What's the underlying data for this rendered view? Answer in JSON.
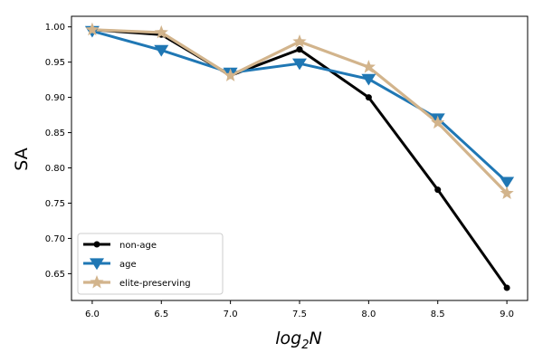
{
  "chart_data": {
    "type": "line",
    "xlabel": "log2N",
    "xlabel_base": "log",
    "xlabel_sub": "2",
    "xlabel_tail": "N",
    "ylabel": "SA",
    "x": [
      6.0,
      6.5,
      7.0,
      7.5,
      8.0,
      8.5,
      9.0
    ],
    "xlim": [
      5.85,
      9.15
    ],
    "ylim": [
      0.612,
      1.015
    ],
    "xticks": [
      6.0,
      6.5,
      7.0,
      7.5,
      8.0,
      8.5,
      9.0
    ],
    "xtick_labels": [
      "6.0",
      "6.5",
      "7.0",
      "7.5",
      "8.0",
      "8.5",
      "9.0"
    ],
    "yticks": [
      0.65,
      0.7,
      0.75,
      0.8,
      0.85,
      0.9,
      0.95,
      1.0
    ],
    "ytick_labels": [
      "0.65",
      "0.70",
      "0.75",
      "0.80",
      "0.85",
      "0.90",
      "0.95",
      "1.00"
    ],
    "grid": false,
    "legend_position": "lower-left",
    "series": [
      {
        "name": "non-age",
        "values": [
          0.996,
          0.989,
          0.931,
          0.968,
          0.9,
          0.769,
          0.63
        ],
        "color": "#000000",
        "marker": "circle"
      },
      {
        "name": "age",
        "values": [
          0.994,
          0.967,
          0.935,
          0.948,
          0.926,
          0.87,
          0.78
        ],
        "color": "#1f77b4",
        "marker": "triangle-down"
      },
      {
        "name": "elite-preserving",
        "values": [
          0.996,
          0.992,
          0.931,
          0.979,
          0.943,
          0.864,
          0.764
        ],
        "color": "#d2b48c",
        "marker": "star"
      }
    ]
  }
}
